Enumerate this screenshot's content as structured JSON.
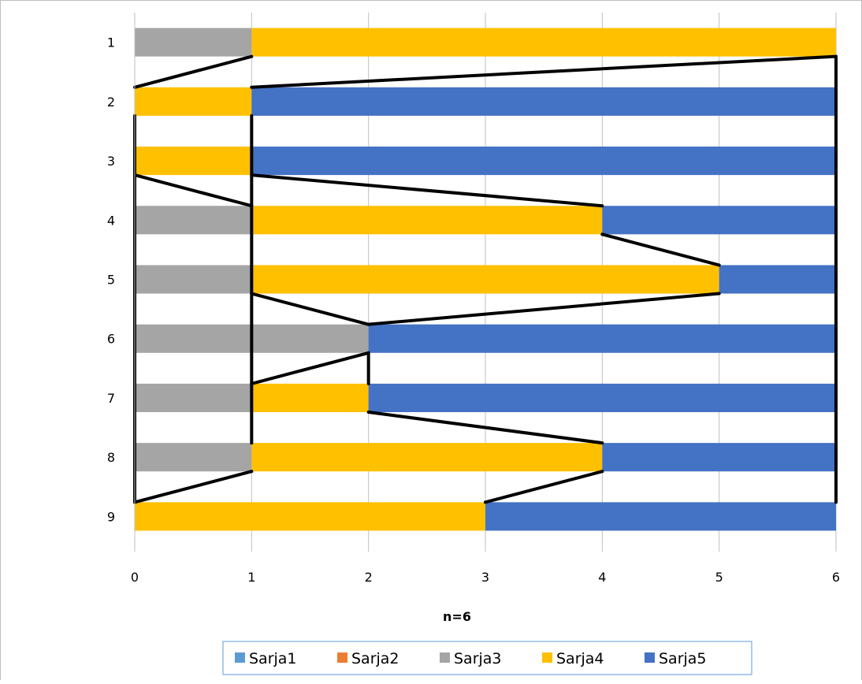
{
  "chart_data": {
    "type": "bar",
    "orientation": "horizontal",
    "stacked": true,
    "title": "",
    "xlabel": "n=6",
    "ylabel": "",
    "categories": [
      "1",
      "2",
      "3",
      "4",
      "5",
      "6",
      "7",
      "8",
      "9"
    ],
    "xlim": [
      0,
      6
    ],
    "xticks": [
      "0",
      "1",
      "2",
      "3",
      "4",
      "5",
      "6"
    ],
    "grid": true,
    "legend_position": "bottom",
    "series": [
      {
        "name": "Sarja1",
        "color": "#5B9BD5",
        "values": [
          0,
          0,
          0,
          0,
          0,
          0,
          0,
          0,
          0
        ]
      },
      {
        "name": "Sarja2",
        "color": "#ED7D31",
        "values": [
          0,
          0,
          0,
          0,
          0,
          0,
          0,
          0,
          0
        ]
      },
      {
        "name": "Sarja3",
        "color": "#A5A5A5",
        "values": [
          1,
          0,
          0,
          1,
          1,
          2,
          1,
          1,
          0
        ]
      },
      {
        "name": "Sarja4",
        "color": "#FFC000",
        "values": [
          5,
          1,
          1,
          3,
          4,
          0,
          1,
          3,
          3
        ]
      },
      {
        "name": "Sarja5",
        "color": "#4472C4",
        "values": [
          0,
          5,
          5,
          2,
          1,
          4,
          4,
          2,
          3
        ]
      }
    ],
    "connector_lines": {
      "color": "#000000",
      "segments": [
        {
          "from": [
            "1",
            1
          ],
          "to": [
            "2",
            0
          ]
        },
        {
          "from": [
            "1",
            6
          ],
          "to": [
            "2",
            1
          ]
        },
        {
          "from": [
            "1",
            6
          ],
          "to": [
            "9",
            6
          ]
        },
        {
          "from": [
            "2",
            0
          ],
          "to": [
            "9",
            0
          ]
        },
        {
          "from": [
            "2",
            1
          ],
          "to": [
            "8",
            1
          ]
        },
        {
          "from": [
            "3",
            0
          ],
          "to": [
            "4",
            1
          ]
        },
        {
          "from": [
            "3",
            1
          ],
          "to": [
            "4",
            4
          ]
        },
        {
          "from": [
            "4",
            4
          ],
          "to": [
            "5",
            5
          ]
        },
        {
          "from": [
            "5",
            1
          ],
          "to": [
            "6",
            2
          ]
        },
        {
          "from": [
            "5",
            5
          ],
          "to": [
            "6",
            2
          ]
        },
        {
          "from": [
            "6",
            2
          ],
          "to": [
            "7",
            1
          ]
        },
        {
          "from": [
            "6",
            2
          ],
          "to": [
            "7",
            2
          ]
        },
        {
          "from": [
            "7",
            2
          ],
          "to": [
            "8",
            4
          ]
        },
        {
          "from": [
            "8",
            1
          ],
          "to": [
            "9",
            0
          ]
        },
        {
          "from": [
            "8",
            4
          ],
          "to": [
            "9",
            3
          ]
        }
      ]
    }
  }
}
